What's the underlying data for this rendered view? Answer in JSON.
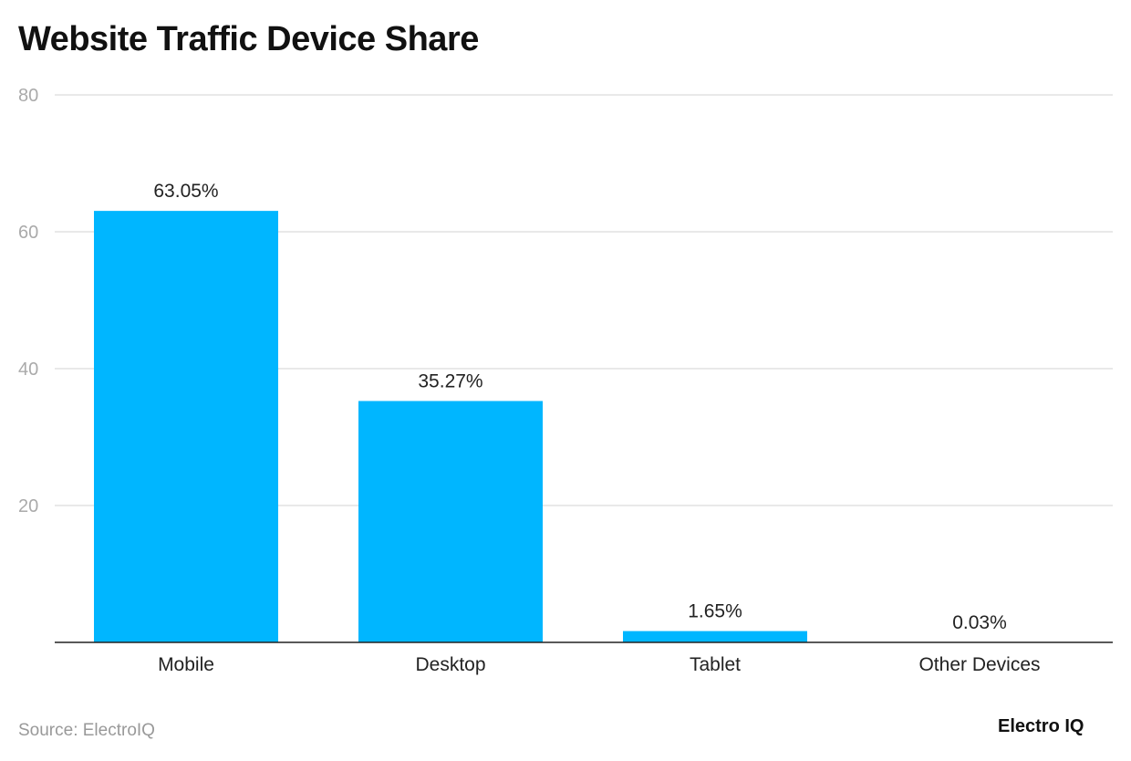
{
  "chart_data": {
    "type": "bar",
    "title": "Website Traffic Device Share",
    "categories": [
      "Mobile",
      "Desktop",
      "Tablet",
      "Other Devices"
    ],
    "values": [
      63.05,
      35.27,
      1.65,
      0.03
    ],
    "data_labels": [
      "63.05%",
      "35.27%",
      "1.65%",
      "0.03%"
    ],
    "xlabel": "",
    "ylabel": "",
    "ylim": [
      0,
      80
    ],
    "yticks": [
      20,
      40,
      60,
      80
    ],
    "grid": true,
    "bar_color": "#00B6FF"
  },
  "source": "Source: ElectroIQ",
  "logo": "Electro IQ"
}
